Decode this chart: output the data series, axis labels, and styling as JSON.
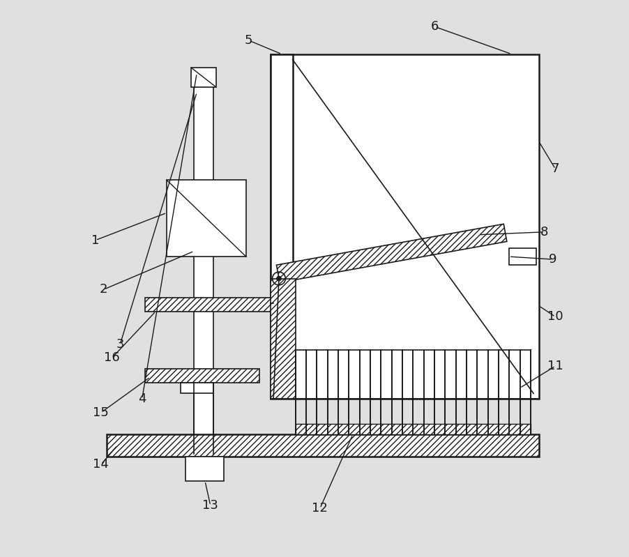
{
  "bg_color": "#e0e0e0",
  "line_color": "#1a1a1a",
  "fig_width": 9.02,
  "fig_height": 7.99,
  "label_fs": 13,
  "lw_main": 1.8,
  "lw_thin": 1.2
}
